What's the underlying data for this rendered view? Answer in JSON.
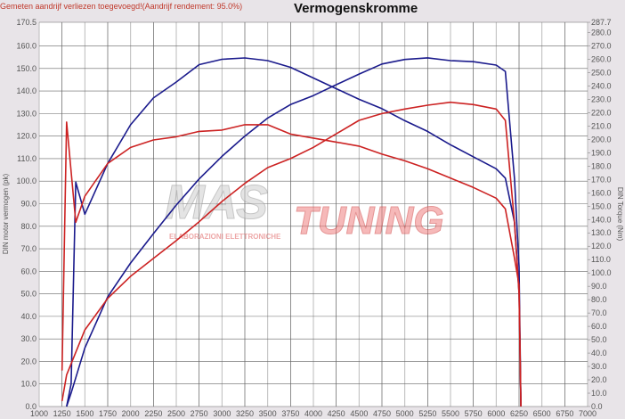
{
  "note": "Gemeten aandrijf verliezen toegevoegd!(Aandrijf rendement: 95.0%)",
  "chart_data": {
    "type": "line",
    "title": "Vermogenskromme",
    "ylabel": "DIN motor vermogen (pk)",
    "y2label": "DIN Torque (Nm)",
    "xlim": [
      1000,
      7000
    ],
    "ylim": [
      0,
      170.5
    ],
    "y2lim": [
      0,
      287.7
    ],
    "grid": true,
    "x_ticks": [
      1000,
      1250,
      1500,
      1750,
      2000,
      2250,
      2500,
      2750,
      3000,
      3250,
      3500,
      3750,
      4000,
      4250,
      4500,
      4750,
      5000,
      5250,
      5500,
      5750,
      6000,
      6250,
      6500,
      6750,
      7000
    ],
    "y_ticks": [
      "0.0",
      "10.0",
      "20.0",
      "30.0",
      "40.0",
      "50.0",
      "60.0",
      "70.0",
      "80.0",
      "90.0",
      "100.0",
      "110.0",
      "120.0",
      "130.0",
      "140.0",
      "150.0",
      "160.0",
      "170.5"
    ],
    "y2_ticks": [
      "0.0",
      "10.0",
      "20.0",
      "30.0",
      "40.0",
      "50.0",
      "60.0",
      "70.0",
      "80.0",
      "90.0",
      "100.0",
      "110.0",
      "120.0",
      "130.0",
      "140.0",
      "150.0",
      "160.0",
      "170.0",
      "180.0",
      "190.0",
      "200.0",
      "210.0",
      "220.0",
      "230.0",
      "240.0",
      "250.0",
      "260.0",
      "270.0",
      "280.0",
      "287.7"
    ],
    "series": [
      {
        "axis": "y2",
        "color": "#1a1a8c",
        "x": [
          1300,
          1350,
          1400,
          1500,
          1750,
          2000,
          2250,
          2500,
          2750,
          3000,
          3250,
          3500,
          3750,
          4000,
          4250,
          4500,
          4750,
          5000,
          5250,
          5500,
          5750,
          6000,
          6100,
          6200,
          6250,
          6270
        ],
        "values": [
          0,
          17,
          168,
          144,
          182,
          211,
          231,
          243,
          256,
          260,
          261,
          259,
          254,
          246,
          238,
          230,
          223,
          214,
          206,
          196,
          187,
          178,
          171,
          138,
          85,
          0
        ]
      },
      {
        "axis": "y",
        "color": "#1a1a8c",
        "x": [
          1300,
          1350,
          1500,
          1750,
          2000,
          2250,
          2500,
          2750,
          3000,
          3250,
          3500,
          3750,
          4000,
          4250,
          4500,
          4750,
          5000,
          5250,
          5500,
          5750,
          6000,
          6100,
          6200,
          6250,
          6270
        ],
        "values": [
          0,
          6,
          26,
          48.7,
          63.7,
          76.7,
          89.4,
          101,
          111,
          120,
          128,
          134,
          138,
          142.8,
          147.5,
          152,
          154,
          154.7,
          153.5,
          153,
          151.5,
          148.7,
          101,
          62,
          0
        ]
      },
      {
        "axis": "y2",
        "color": "#cc2222",
        "x": [
          1250,
          1300,
          1400,
          1500,
          1750,
          2000,
          2250,
          2500,
          2750,
          3000,
          3250,
          3500,
          3750,
          4000,
          4250,
          4500,
          4750,
          5000,
          5250,
          5500,
          5750,
          6000,
          6100,
          6200,
          6250,
          6270
        ],
        "values": [
          27,
          213,
          138,
          157.5,
          182,
          194,
          199.6,
          202,
          206,
          207,
          211,
          211,
          204,
          201,
          198,
          195,
          189,
          184,
          178,
          171,
          164,
          156,
          148,
          111,
          91,
          0
        ]
      },
      {
        "axis": "y",
        "color": "#cc2222",
        "x": [
          1250,
          1300,
          1500,
          1750,
          2000,
          2250,
          2500,
          2750,
          3000,
          3250,
          3500,
          3750,
          4000,
          4250,
          4500,
          4750,
          5000,
          5250,
          5500,
          5750,
          6000,
          6100,
          6200,
          6250,
          6270
        ],
        "values": [
          2.4,
          14,
          34,
          48,
          57.8,
          65.7,
          73.6,
          82,
          91,
          99,
          106,
          110,
          115,
          121,
          127,
          130,
          132,
          133.7,
          135,
          134,
          132,
          127,
          81.5,
          50,
          0
        ]
      }
    ]
  },
  "watermark": {
    "text1": "MAS",
    "text2": "TUNING",
    "subtitle": "ELABORAZIONI ELETTRONICHE"
  }
}
